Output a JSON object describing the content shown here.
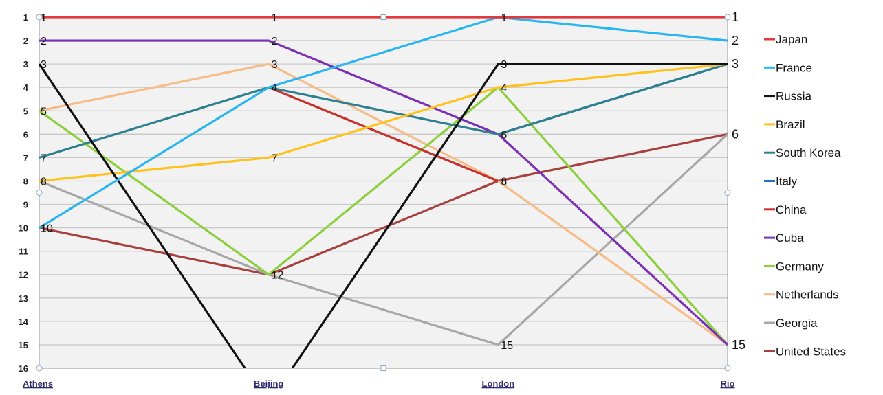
{
  "chart_data": {
    "type": "line",
    "title": "",
    "xlabel": "",
    "ylabel": "",
    "categories": [
      "Athens",
      "Beijing",
      "London",
      "Rio"
    ],
    "ylim": [
      1,
      16
    ],
    "y_inverted": true,
    "y_ticks": [
      1,
      2,
      3,
      4,
      5,
      6,
      7,
      8,
      9,
      10,
      11,
      12,
      13,
      14,
      15,
      16
    ],
    "grid": true,
    "legend_position": "right",
    "series": [
      {
        "name": "Japan",
        "color": "#e03a3e",
        "values": [
          1,
          1,
          1,
          1
        ]
      },
      {
        "name": "France",
        "color": "#29b6f0",
        "values": [
          10,
          4,
          1,
          2
        ]
      },
      {
        "name": "Russia",
        "color": "#111111",
        "values": [
          3,
          17.5,
          3,
          3
        ]
      },
      {
        "name": "Brazil",
        "color": "#ffc21a",
        "values": [
          8,
          7,
          4,
          3
        ]
      },
      {
        "name": "South Korea",
        "color": "#2e7f8f",
        "values": [
          7,
          4,
          6,
          3
        ]
      },
      {
        "name": "Italy",
        "color": "#1f6fc4",
        "values": [
          null,
          null,
          6,
          3
        ]
      },
      {
        "name": "China",
        "color": "#c8302c",
        "values": [
          null,
          4,
          8,
          null
        ]
      },
      {
        "name": "Cuba",
        "color": "#7a2fb5",
        "values": [
          2,
          2,
          6,
          15
        ]
      },
      {
        "name": "Germany",
        "color": "#8ccf3c",
        "values": [
          5,
          12,
          4,
          15
        ]
      },
      {
        "name": "Netherlands",
        "color": "#f7bc86",
        "values": [
          5,
          3,
          8,
          15
        ]
      },
      {
        "name": "Georgia",
        "color": "#a7a7a7",
        "values": [
          8,
          12,
          15,
          6
        ]
      },
      {
        "name": "United States",
        "color": "#a8413e",
        "values": [
          10,
          12,
          8,
          6
        ]
      }
    ],
    "data_labels": {
      "Athens": [
        "1",
        "2",
        "3",
        "5",
        "7",
        "8",
        "10"
      ],
      "Beijing": [
        "1",
        "2",
        "3",
        "4",
        "7",
        "12"
      ],
      "London": [
        "1",
        "3",
        "4",
        "6",
        "8",
        "15"
      ],
      "Rio": [
        "1",
        "2",
        "3",
        "6",
        "15"
      ]
    }
  }
}
